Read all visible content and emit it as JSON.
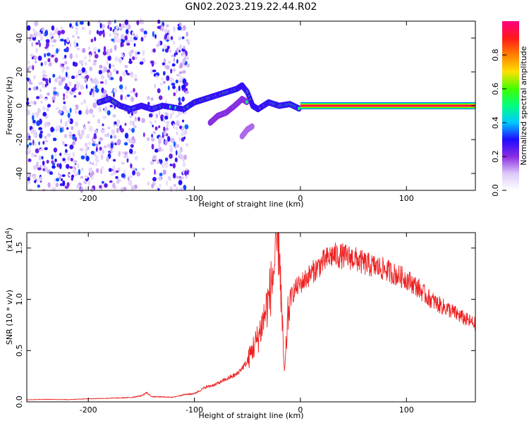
{
  "title": "GN02.2023.219.22.44.R02",
  "chart_data": [
    {
      "type": "heatmap",
      "xlabel": "Height of straight line (km)",
      "ylabel": "Frequency (Hz)",
      "xlim": [
        -258,
        165
      ],
      "ylim": [
        -50,
        50
      ],
      "xticks": [
        -200,
        -100,
        0,
        100
      ],
      "xtick_labels": [
        "-200",
        "-100",
        "0",
        "100"
      ],
      "yticks": [
        -40,
        -20,
        0,
        20,
        40
      ],
      "ytick_labels": [
        "-40",
        "-20",
        "0",
        "20",
        "40"
      ],
      "colorbar": {
        "label": "Normalized spectral amplitude",
        "range": [
          0.0,
          1.0
        ],
        "ticks": [
          0.0,
          0.2,
          0.4,
          0.6,
          0.8
        ],
        "tick_labels": [
          "0.0",
          "0.2",
          "0.4",
          "0.6",
          "0.8"
        ],
        "colormap": [
          "#ffffff",
          "#dcc8f8",
          "#8a2be2",
          "#1e0bff",
          "#00c8ff",
          "#00ff80",
          "#40ff00",
          "#ffe000",
          "#ff8000",
          "#ff1a1a",
          "#ff0080"
        ]
      },
      "features": [
        {
          "name": "noise",
          "x_range": [
            -258,
            -105
          ],
          "freq_range": [
            -50,
            50
          ],
          "amplitude": 0.1
        },
        {
          "name": "echo",
          "points": [
            [
              -190,
              2
            ],
            [
              -180,
              4
            ],
            [
              -170,
              0
            ],
            [
              -160,
              -2
            ],
            [
              -150,
              0
            ],
            [
              -140,
              -2
            ],
            [
              -130,
              0
            ],
            [
              -110,
              -2
            ],
            [
              -100,
              2
            ],
            [
              -90,
              4
            ],
            [
              -80,
              6
            ],
            [
              -70,
              8
            ],
            [
              -60,
              10
            ],
            [
              -55,
              12
            ],
            [
              -50,
              8
            ],
            [
              -45,
              0
            ],
            [
              -40,
              -2
            ],
            [
              -30,
              2
            ],
            [
              -20,
              0
            ],
            [
              -10,
              1
            ],
            [
              0,
              -2
            ]
          ],
          "amplitude": 0.35
        },
        {
          "name": "branch",
          "points": [
            [
              -85,
              -10
            ],
            [
              -78,
              -6
            ],
            [
              -70,
              -4
            ],
            [
              -62,
              0
            ],
            [
              -55,
              4
            ],
            [
              -50,
              2
            ]
          ],
          "amplitude": 0.25
        },
        {
          "name": "blob",
          "points": [
            [
              -55,
              -18
            ],
            [
              -50,
              -14
            ],
            [
              -45,
              -12
            ]
          ],
          "amplitude": 0.2
        },
        {
          "name": "carrier",
          "x_range": [
            0,
            165
          ],
          "freq": 0,
          "amplitude": 0.95
        }
      ]
    },
    {
      "type": "line",
      "xlabel": "Height of straight line (km)",
      "ylabel": "SNR (10 * v/v)",
      "scale_label": "(x10",
      "scale_exp": "4",
      "scale_close": ")",
      "xlim": [
        -258,
        165
      ],
      "ylim": [
        0,
        16500
      ],
      "xticks": [
        -200,
        -100,
        0,
        100
      ],
      "xtick_labels": [
        "-200",
        "-100",
        "0",
        "100"
      ],
      "yticks": [
        0,
        5000,
        10000,
        15000
      ],
      "ytick_labels": [
        "0.0",
        "0.5",
        "1.0",
        "1.5"
      ],
      "color": "#ee2222",
      "series": [
        {
          "x": [
            -258,
            -240,
            -220,
            -200,
            -180,
            -160,
            -150,
            -145,
            -140,
            -120,
            -110,
            -100,
            -90,
            -80,
            -70,
            -60,
            -50,
            -45,
            -40,
            -35,
            -30,
            -25,
            -22,
            -20,
            -18,
            -15,
            -12,
            -10,
            -5,
            0,
            10,
            20,
            30,
            40,
            50,
            60,
            70,
            80,
            90,
            100,
            110,
            120,
            130,
            140,
            150,
            160,
            165
          ],
          "y": [
            200,
            250,
            220,
            300,
            350,
            420,
            600,
            900,
            500,
            450,
            700,
            800,
            1400,
            1700,
            2200,
            2700,
            3900,
            5200,
            6200,
            8000,
            10000,
            12800,
            15500,
            16200,
            9500,
            2500,
            8000,
            10000,
            11000,
            11500,
            12500,
            13500,
            14300,
            14200,
            14000,
            13500,
            13200,
            12900,
            12400,
            12000,
            11200,
            10200,
            9500,
            9000,
            8400,
            7800,
            7600
          ]
        }
      ]
    }
  ]
}
